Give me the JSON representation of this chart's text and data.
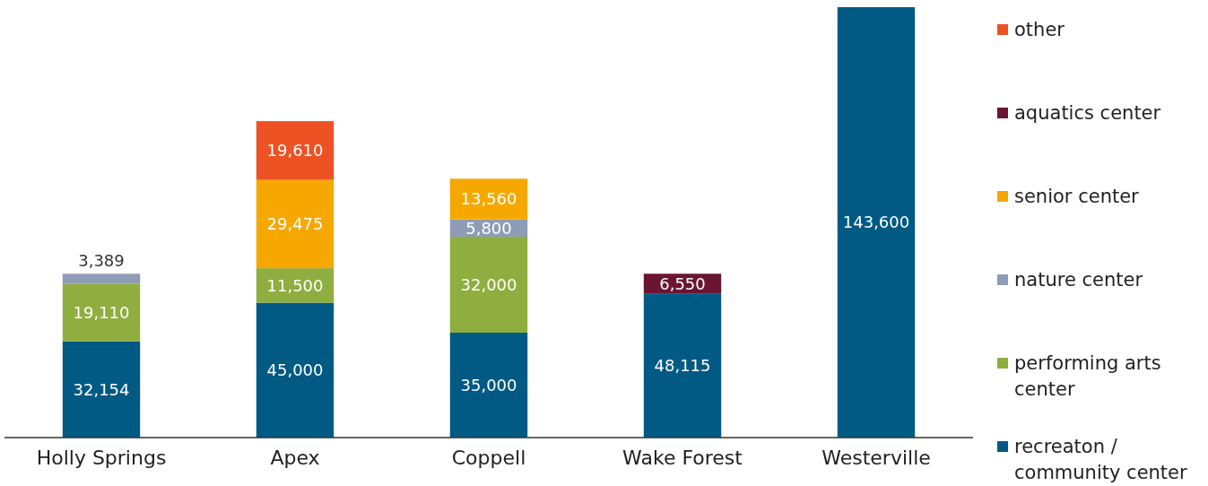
{
  "chart_data": {
    "type": "bar",
    "stacked": true,
    "categories": [
      "Holly Springs",
      "Apex",
      "Coppell",
      "Wake Forest",
      "Westerville"
    ],
    "series": [
      {
        "name": "recreaton / community center",
        "color": "#005a84",
        "values": [
          32154,
          45000,
          35000,
          48115,
          143600
        ],
        "value_labels": [
          "32,154",
          "45,000",
          "35,000",
          "48,115",
          "143,600"
        ]
      },
      {
        "name": "performing arts center",
        "color": "#8fae3f",
        "values": [
          19110,
          11500,
          32000,
          null,
          null
        ],
        "value_labels": [
          "19,110",
          "11,500",
          "32,000",
          null,
          null
        ]
      },
      {
        "name": "nature center",
        "color": "#8e9db5",
        "values": [
          3389,
          null,
          5800,
          null,
          null
        ],
        "value_labels": [
          "3,389",
          null,
          "5,800",
          null,
          null
        ]
      },
      {
        "name": "senior center",
        "color": "#f6a800",
        "values": [
          null,
          29475,
          13560,
          null,
          null
        ],
        "value_labels": [
          null,
          "29,475",
          "13,560",
          null,
          null
        ]
      },
      {
        "name": "aquatics center",
        "color": "#6a1532",
        "values": [
          null,
          null,
          null,
          6550,
          null
        ],
        "value_labels": [
          null,
          null,
          null,
          "6,550",
          null
        ]
      },
      {
        "name": "other",
        "color": "#ee5224",
        "values": [
          null,
          19610,
          null,
          null,
          null
        ],
        "value_labels": [
          null,
          "19,610",
          null,
          null,
          null
        ]
      }
    ],
    "tick_labels": "x",
    "legend": "right"
  }
}
